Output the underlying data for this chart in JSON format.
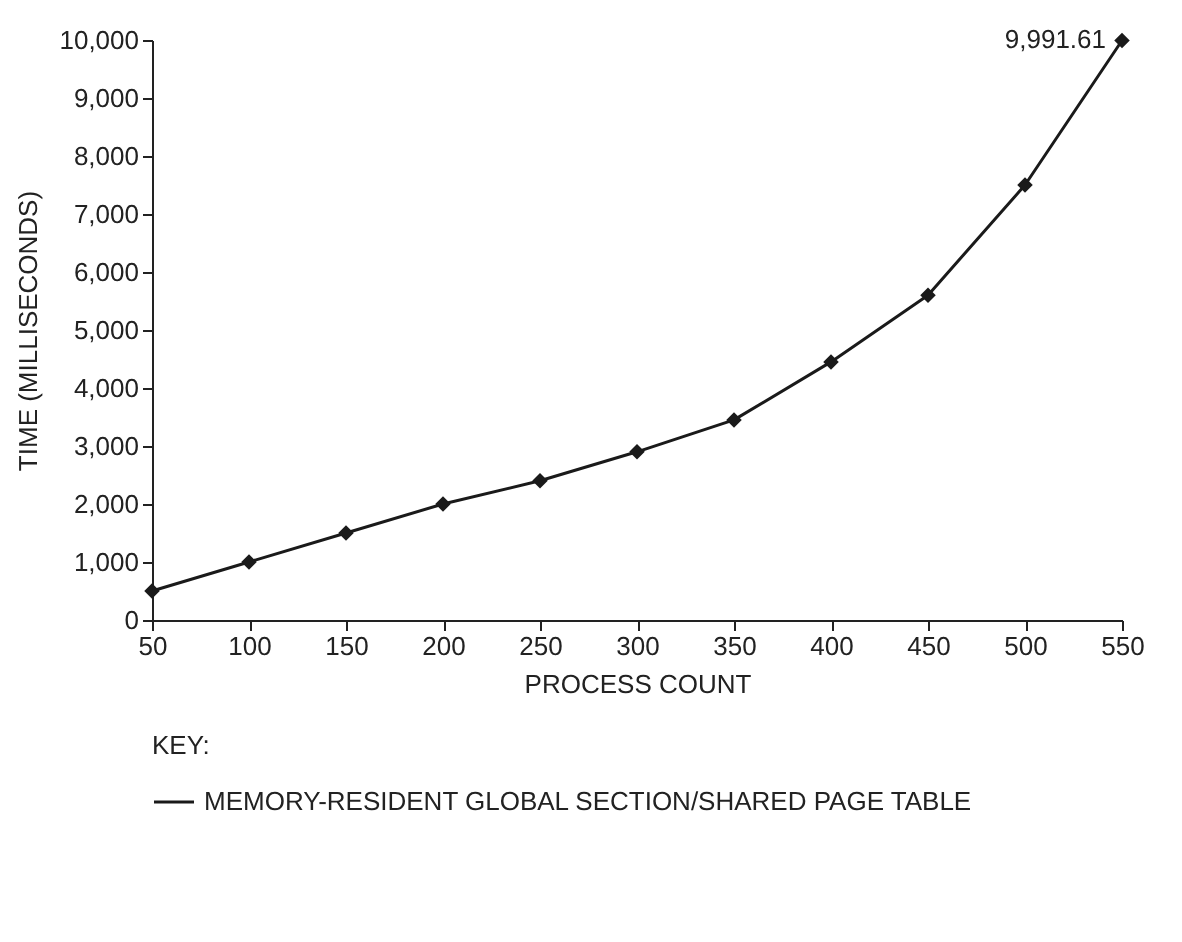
{
  "chart_data": {
    "type": "line",
    "xlabel": "PROCESS COUNT",
    "ylabel": "TIME (MILLISECONDS)",
    "legend_title": "KEY:",
    "x": [
      50,
      100,
      150,
      200,
      250,
      300,
      350,
      400,
      450,
      500,
      550
    ],
    "series": [
      {
        "name": "MEMORY-RESIDENT GLOBAL SECTION/SHARED PAGE TABLE",
        "color": "#1a1a1a",
        "values": [
          500,
          1000,
          1500,
          2000,
          2400,
          2900,
          3450,
          4450,
          5600,
          7500,
          9991.61
        ]
      }
    ],
    "annotations": [
      {
        "text": "9,991.61",
        "x": 550,
        "y": 9991.61
      }
    ],
    "xlim": [
      50,
      550
    ],
    "xticks": [
      50,
      100,
      150,
      200,
      250,
      300,
      350,
      400,
      450,
      500,
      550
    ],
    "ylim": [
      0,
      10000
    ],
    "yticks": [
      0,
      {
        "value": 1000,
        "label": "1,000"
      },
      {
        "value": 2000,
        "label": "2,000"
      },
      {
        "value": 3000,
        "label": "3,000"
      },
      {
        "value": 4000,
        "label": "4,000"
      },
      {
        "value": 5000,
        "label": "5,000"
      },
      {
        "value": 6000,
        "label": "6,000"
      },
      {
        "value": 7000,
        "label": "7,000"
      },
      {
        "value": 8000,
        "label": "8,000"
      },
      {
        "value": 9000,
        "label": "9,000"
      },
      {
        "value": 10000,
        "label": "10,000"
      }
    ],
    "grid": false,
    "legend": "bottom",
    "marker": "diamond",
    "line_style": "solid"
  }
}
